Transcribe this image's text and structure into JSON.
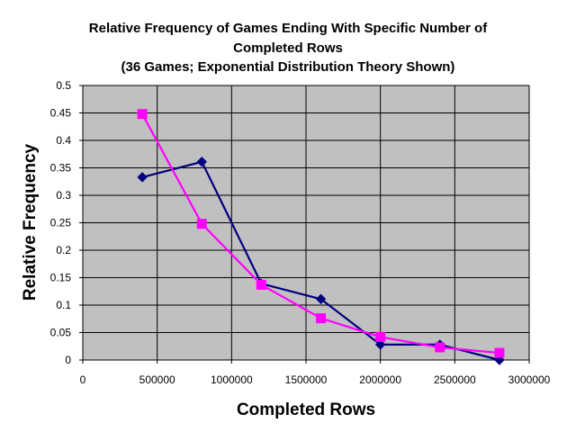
{
  "chart_data": {
    "type": "line",
    "title_lines": [
      "Relative Frequency of Games Ending With Specific Number of",
      "Completed Rows",
      "(36 Games; Exponential Distribution Theory Shown)"
    ],
    "xlabel": "Completed Rows",
    "ylabel": "Relative Frequency",
    "xlim": [
      0,
      3000000
    ],
    "ylim": [
      0,
      0.5
    ],
    "x_ticks": [
      0,
      500000,
      1000000,
      1500000,
      2000000,
      2500000,
      3000000
    ],
    "x_tick_labels": [
      "0",
      "500000",
      "1000000",
      "1500000",
      "2000000",
      "2500000",
      "3000000"
    ],
    "y_ticks": [
      0,
      0.05,
      0.1,
      0.15,
      0.2,
      0.25,
      0.3,
      0.35,
      0.4,
      0.45,
      0.5
    ],
    "y_tick_labels": [
      "0",
      "0.05",
      "0.1",
      "0.15",
      "0.2",
      "0.25",
      "0.3",
      "0.35",
      "0.4",
      "0.45",
      "0.5"
    ],
    "grid": true,
    "plot_background": "#c0c0c0",
    "series": [
      {
        "color": "#000080",
        "marker": "diamond",
        "x": [
          400000,
          800000,
          1200000,
          1600000,
          2000000,
          2400000,
          2800000
        ],
        "y": [
          0.333,
          0.361,
          0.139,
          0.111,
          0.028,
          0.028,
          0.0
        ]
      },
      {
        "color": "#ff00ff",
        "marker": "square",
        "x": [
          400000,
          800000,
          1200000,
          1600000,
          2000000,
          2400000,
          2800000
        ],
        "y": [
          0.448,
          0.248,
          0.137,
          0.076,
          0.042,
          0.023,
          0.013
        ]
      }
    ]
  }
}
